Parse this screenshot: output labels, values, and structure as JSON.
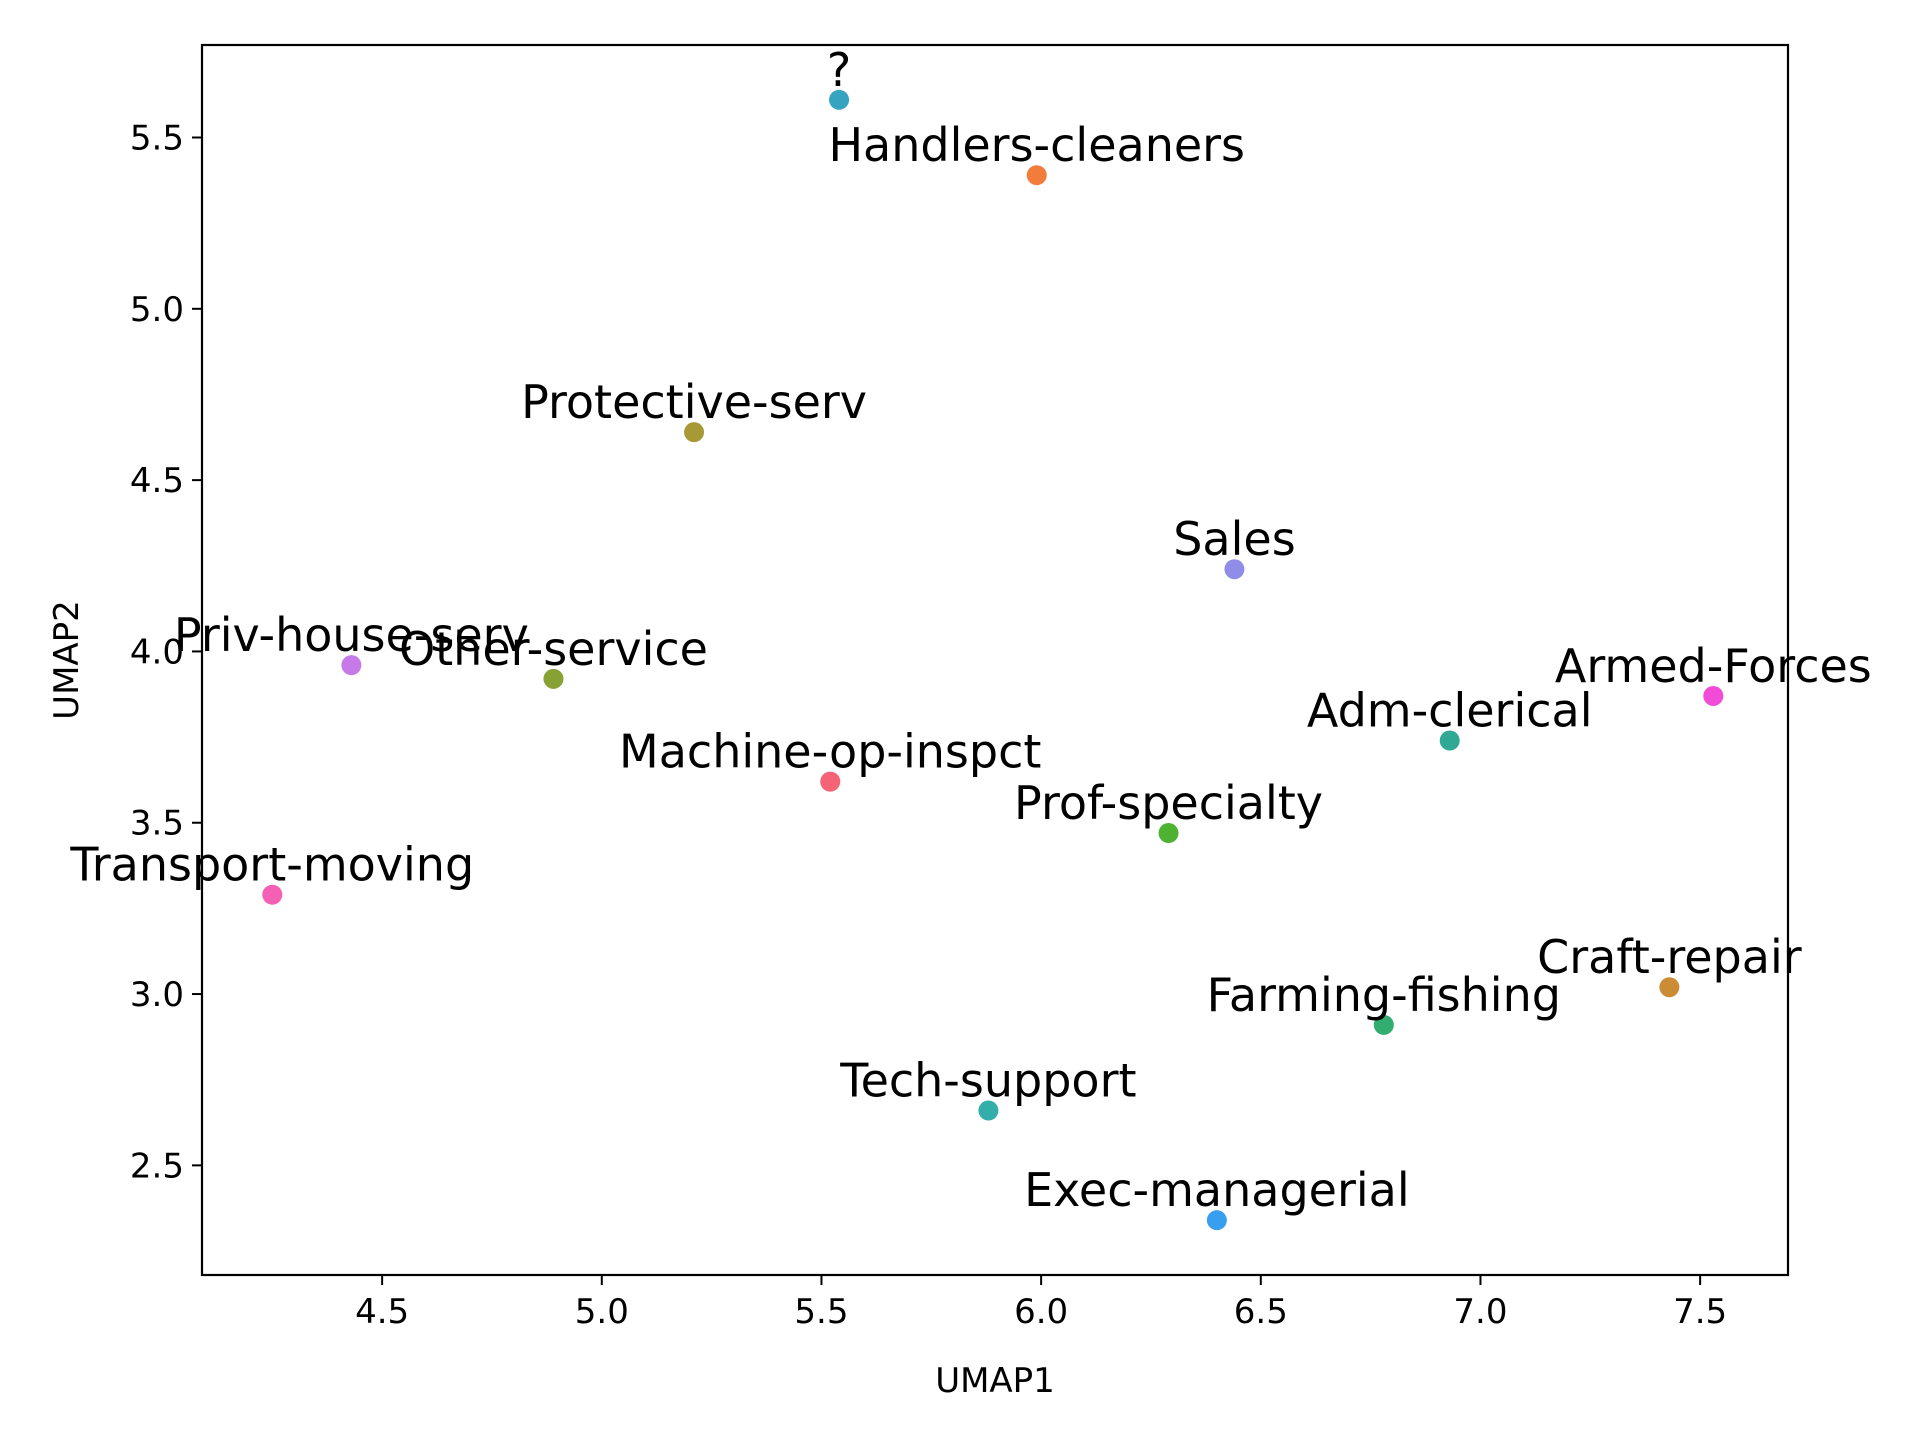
{
  "chart_data": {
    "type": "scatter",
    "title": "",
    "xlabel": "UMAP1",
    "ylabel": "UMAP2",
    "xlim": [
      4.09,
      7.7
    ],
    "ylim": [
      2.18,
      5.77
    ],
    "xticks": [
      "4.5",
      "5.0",
      "5.5",
      "6.0",
      "6.5",
      "7.0",
      "7.5"
    ],
    "yticks": [
      "2.5",
      "3.0",
      "3.5",
      "4.0",
      "4.5",
      "5.0",
      "5.5"
    ],
    "grid": false,
    "points": [
      {
        "label": "?",
        "x": 5.54,
        "y": 5.61,
        "color": "#36a3c1"
      },
      {
        "label": "Handlers-cleaners",
        "x": 5.99,
        "y": 5.39,
        "color": "#f27c3c"
      },
      {
        "label": "Protective-serv",
        "x": 5.21,
        "y": 4.64,
        "color": "#a79a36"
      },
      {
        "label": "Sales",
        "x": 6.44,
        "y": 4.24,
        "color": "#8f8de8"
      },
      {
        "label": "Priv-house-serv",
        "x": 4.43,
        "y": 3.96,
        "color": "#c67ae8"
      },
      {
        "label": "Other-service",
        "x": 4.89,
        "y": 3.92,
        "color": "#88a134"
      },
      {
        "label": "Armed-Forces",
        "x": 7.53,
        "y": 3.87,
        "color": "#f14bd8"
      },
      {
        "label": "Adm-clerical",
        "x": 6.93,
        "y": 3.74,
        "color": "#30a896"
      },
      {
        "label": "Machine-op-inspct",
        "x": 5.52,
        "y": 3.62,
        "color": "#f46376"
      },
      {
        "label": "Prof-specialty",
        "x": 6.29,
        "y": 3.47,
        "color": "#4db132"
      },
      {
        "label": "Transport-moving",
        "x": 4.25,
        "y": 3.29,
        "color": "#f55fb5"
      },
      {
        "label": "Craft-repair",
        "x": 7.43,
        "y": 3.02,
        "color": "#cc8c35"
      },
      {
        "label": "Farming-fishing",
        "x": 6.78,
        "y": 2.91,
        "color": "#31ad70"
      },
      {
        "label": "Tech-support",
        "x": 5.88,
        "y": 2.66,
        "color": "#33aeaa"
      },
      {
        "label": "Exec-managerial",
        "x": 6.4,
        "y": 2.34,
        "color": "#389ef0"
      }
    ]
  }
}
